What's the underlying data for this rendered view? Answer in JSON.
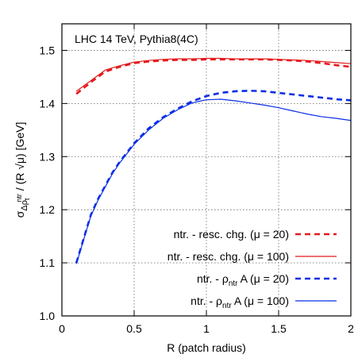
{
  "chart_data": {
    "type": "line",
    "annotation": "LHC 14 TeV, Pythia8(4C)",
    "xlabel": "R (patch radius)",
    "ylabel": {
      "main": "σ",
      "sub": "Δρ",
      "sub_sub": "t",
      "sub_sup": "ntr",
      "rest": " / (R √μ) [GeV]"
    },
    "xlim": [
      0,
      2
    ],
    "ylim": [
      1.0,
      1.55
    ],
    "xticks": [
      0,
      0.5,
      1,
      1.5,
      2
    ],
    "xtick_labels": [
      "0",
      "0.5",
      "1",
      "1.5",
      "2"
    ],
    "yticks": [
      1.0,
      1.1,
      1.2,
      1.3,
      1.4,
      1.5
    ],
    "ytick_labels": [
      "1.0",
      "1.1",
      "1.2",
      "1.3",
      "1.4",
      "1.5"
    ],
    "grid": true,
    "legend_position": "bottom-right",
    "series": [
      {
        "legend": {
          "prefix": "ntr. - resc. chg. (μ = ",
          "value": "20",
          "suffix": ")"
        },
        "color": "#e41a1c",
        "dashed": true,
        "x": [
          0.1,
          0.2,
          0.3,
          0.4,
          0.5,
          0.6,
          0.7,
          0.8,
          0.9,
          1.0,
          1.1,
          1.2,
          1.3,
          1.4,
          1.5,
          1.6,
          1.7,
          1.8,
          1.9,
          2.0
        ],
        "y": [
          1.418,
          1.44,
          1.46,
          1.469,
          1.476,
          1.479,
          1.481,
          1.482,
          1.482,
          1.483,
          1.483,
          1.483,
          1.483,
          1.483,
          1.482,
          1.481,
          1.479,
          1.476,
          1.472,
          1.469
        ]
      },
      {
        "legend": {
          "prefix": "ntr. - resc. chg. (μ = ",
          "value": "100",
          "suffix": ")"
        },
        "color": "#e41a1c",
        "dashed": false,
        "x": [
          0.1,
          0.2,
          0.3,
          0.4,
          0.5,
          0.6,
          0.7,
          0.8,
          0.9,
          1.0,
          1.1,
          1.2,
          1.3,
          1.4,
          1.5,
          1.6,
          1.7,
          1.8,
          1.9,
          2.0
        ],
        "y": [
          1.423,
          1.443,
          1.463,
          1.471,
          1.478,
          1.481,
          1.483,
          1.484,
          1.484,
          1.485,
          1.485,
          1.484,
          1.484,
          1.484,
          1.483,
          1.482,
          1.481,
          1.479,
          1.477,
          1.475
        ]
      },
      {
        "legend": {
          "prefix": "ntr. - ρ",
          "prefix_sub": "ntr",
          "mid": " A (μ = ",
          "value": "20",
          "suffix": ")"
        },
        "color": "#0a2ee8",
        "dashed": true,
        "x": [
          0.1,
          0.15,
          0.2,
          0.25,
          0.3,
          0.35,
          0.4,
          0.5,
          0.6,
          0.7,
          0.8,
          0.9,
          1.0,
          1.1,
          1.2,
          1.3,
          1.4,
          1.5,
          1.6,
          1.7,
          1.8,
          1.9,
          2.0
        ],
        "y": [
          1.1,
          1.145,
          1.19,
          1.22,
          1.245,
          1.27,
          1.29,
          1.325,
          1.353,
          1.374,
          1.39,
          1.404,
          1.414,
          1.42,
          1.423,
          1.424,
          1.423,
          1.42,
          1.417,
          1.414,
          1.411,
          1.408,
          1.406
        ]
      },
      {
        "legend": {
          "prefix": "ntr. - ρ",
          "prefix_sub": "ntr",
          "mid": " A (μ = ",
          "value": "100",
          "suffix": ")"
        },
        "color": "#0a2ee8",
        "dashed": false,
        "x": [
          0.1,
          0.15,
          0.2,
          0.25,
          0.3,
          0.35,
          0.4,
          0.5,
          0.6,
          0.7,
          0.8,
          0.9,
          1.0,
          1.1,
          1.2,
          1.3,
          1.4,
          1.5,
          1.6,
          1.7,
          1.8,
          1.9,
          2.0
        ],
        "y": [
          1.098,
          1.143,
          1.188,
          1.218,
          1.243,
          1.268,
          1.288,
          1.323,
          1.35,
          1.372,
          1.388,
          1.401,
          1.407,
          1.408,
          1.405,
          1.401,
          1.397,
          1.392,
          1.386,
          1.38,
          1.375,
          1.372,
          1.368
        ]
      }
    ]
  }
}
